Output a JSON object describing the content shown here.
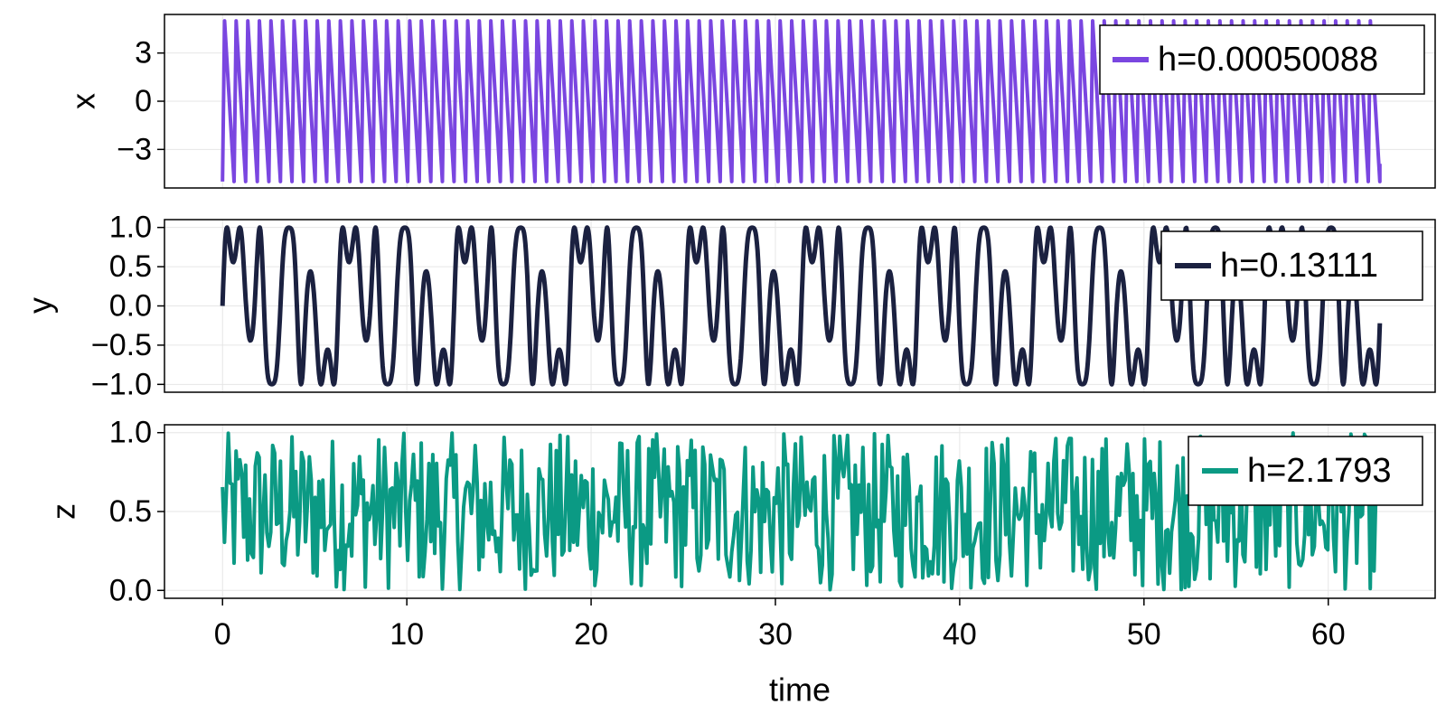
{
  "chart_data": [
    {
      "type": "line",
      "ylabel": "x",
      "xlabel": "",
      "xlim": [
        -3.15,
        65.8
      ],
      "ylim": [
        -5.4,
        5.4
      ],
      "yticks": [
        -3,
        0,
        3
      ],
      "ytick_labels": [
        "−3",
        "0",
        "3"
      ],
      "grid": true,
      "legend_position": "top-right",
      "series": [
        {
          "name": "h=0.00050088",
          "color": "#7a46e0",
          "pattern": "sawtooth",
          "t_range": [
            0,
            62.8
          ],
          "period": 0.628,
          "amplitude": 5,
          "end_value": -3.9
        }
      ]
    },
    {
      "type": "line",
      "ylabel": "y",
      "xlabel": "",
      "xlim": [
        -3.15,
        65.8
      ],
      "ylim": [
        -1.1,
        1.1
      ],
      "yticks": [
        -1.0,
        -0.5,
        0.0,
        0.5,
        1.0
      ],
      "ytick_labels": [
        "−1.0",
        "−0.5",
        "0.0",
        "0.5",
        "1.0"
      ],
      "grid": true,
      "legend_position": "top-right",
      "series": [
        {
          "name": "h=0.13111",
          "color": "#1b2140",
          "pattern": "sin(t + 2 sin(3t))",
          "t_range": [
            0,
            62.8
          ]
        }
      ]
    },
    {
      "type": "line",
      "ylabel": "z",
      "xlabel": "time",
      "xlim": [
        -3.15,
        65.8
      ],
      "ylim": [
        -0.05,
        1.05
      ],
      "yticks": [
        0.0,
        0.5,
        1.0
      ],
      "ytick_labels": [
        "0.0",
        "0.5",
        "1.0"
      ],
      "xticks": [
        0,
        10,
        20,
        30,
        40,
        50,
        60
      ],
      "xtick_labels": [
        "0",
        "10",
        "20",
        "30",
        "40",
        "50",
        "60"
      ],
      "grid": true,
      "legend_position": "top-right",
      "series": [
        {
          "name": "h=2.1793",
          "color": "#0b9a84",
          "pattern": "chaotic",
          "t_range": [
            0,
            62.8
          ],
          "value_range": [
            0,
            1
          ],
          "samples": 600
        }
      ]
    }
  ]
}
